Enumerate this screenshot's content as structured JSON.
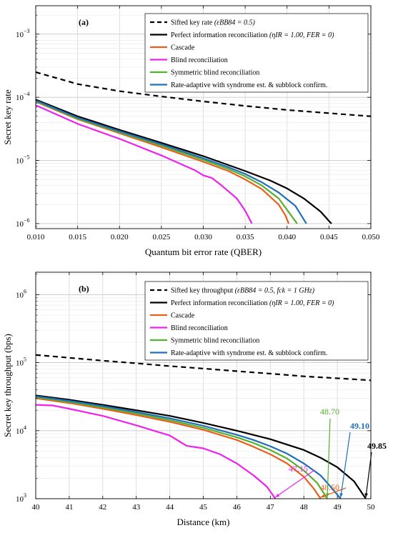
{
  "chart_data": [
    {
      "type": "line",
      "panel_label": "(a)",
      "xlabel": "Quantum bit error rate (QBER)",
      "ylabel": "Secret key rate",
      "xlim": [
        0.01,
        0.05
      ],
      "ylim_log10": [
        -6.08,
        -2.55
      ],
      "y_scale": "log",
      "grid": true,
      "legend_position": "top-right",
      "x_ticks": [
        "0.010",
        "0.015",
        "0.020",
        "0.025",
        "0.030",
        "0.035",
        "0.040",
        "0.045",
        "0.050"
      ],
      "x_tick_values": [
        0.01,
        0.015,
        0.02,
        0.025,
        0.03,
        0.035,
        0.04,
        0.045,
        0.05
      ],
      "y_tick_exponents": [
        -6,
        -5,
        -4,
        -3
      ],
      "series": [
        {
          "name": "Sifted key rate",
          "name_math": "(εBB84 = 0.5)",
          "color": "#000000",
          "dash": true,
          "x": [
            0.01,
            0.015,
            0.02,
            0.025,
            0.03,
            0.035,
            0.04,
            0.045,
            0.05
          ],
          "y": [
            0.00025,
            0.000162,
            0.000125,
            0.000103,
            8.6e-05,
            7.3e-05,
            6.3e-05,
            5.6e-05,
            5e-05
          ]
        },
        {
          "name": "Perfect information reconciliation",
          "name_math": "(ηIR = 1.00, FER = 0)",
          "color": "#000000",
          "x": [
            0.01,
            0.015,
            0.02,
            0.025,
            0.03,
            0.035,
            0.038,
            0.04,
            0.042,
            0.044,
            0.045,
            0.0453
          ],
          "y": [
            9.2e-05,
            5e-05,
            3.05e-05,
            1.9e-05,
            1.17e-05,
            6.8e-06,
            4.8e-06,
            3.6e-06,
            2.5e-06,
            1.55e-06,
            1.1e-06,
            1e-06
          ]
        },
        {
          "name": "Cascade",
          "color": "#e8601c",
          "x": [
            0.01,
            0.015,
            0.02,
            0.025,
            0.03,
            0.033,
            0.035,
            0.037,
            0.039,
            0.0398,
            0.0402
          ],
          "y": [
            8.5e-05,
            4.5e-05,
            2.7e-05,
            1.62e-05,
            9.5e-06,
            6.8e-06,
            5e-06,
            3.5e-06,
            2e-06,
            1.35e-06,
            1e-06
          ]
        },
        {
          "name": "Blind reconciliation",
          "color": "#ee22ee",
          "x": [
            0.01,
            0.015,
            0.019,
            0.02,
            0.025,
            0.028,
            0.029,
            0.03,
            0.031,
            0.032,
            0.034,
            0.035,
            0.0358
          ],
          "y": [
            7.5e-05,
            3.8e-05,
            2.45e-05,
            2.2e-05,
            1.2e-05,
            8e-06,
            7e-06,
            5.8e-06,
            5.3e-06,
            4.2e-06,
            2.5e-06,
            1.6e-06,
            1e-06
          ]
        },
        {
          "name": "Symmetric blind reconciliation",
          "color": "#55b02e",
          "x": [
            0.01,
            0.015,
            0.02,
            0.025,
            0.03,
            0.033,
            0.035,
            0.037,
            0.039,
            0.04,
            0.0412
          ],
          "y": [
            8.7e-05,
            4.6e-05,
            2.8e-05,
            1.72e-05,
            1.02e-05,
            7.3e-06,
            5.6e-06,
            4e-06,
            2.5e-06,
            1.65e-06,
            1e-06
          ]
        },
        {
          "name": "Rate-adaptive with syndrome est. & subblock confirm.",
          "color": "#1f6fba",
          "x": [
            0.01,
            0.015,
            0.02,
            0.025,
            0.03,
            0.033,
            0.035,
            0.037,
            0.039,
            0.041,
            0.0423
          ],
          "y": [
            8.9e-05,
            4.75e-05,
            2.9e-05,
            1.8e-05,
            1.08e-05,
            7.8e-06,
            6.1e-06,
            4.5e-06,
            3.1e-06,
            1.9e-06,
            1e-06
          ]
        }
      ]
    },
    {
      "type": "line",
      "panel_label": "(b)",
      "xlabel": "Distance (km)",
      "ylabel": "Secret key throughput (bps)",
      "xlim": [
        40,
        50
      ],
      "ylim_log10": [
        3.0,
        6.33
      ],
      "y_scale": "log",
      "grid": true,
      "legend_position": "top-right",
      "x_ticks": [
        "40",
        "41",
        "42",
        "43",
        "44",
        "45",
        "46",
        "47",
        "48",
        "49",
        "50"
      ],
      "x_tick_values": [
        40,
        41,
        42,
        43,
        44,
        45,
        46,
        47,
        48,
        49,
        50
      ],
      "y_tick_exponents": [
        3,
        4,
        5,
        6
      ],
      "series": [
        {
          "name": "Sifted key throughput",
          "name_math": "(εBB84 = 0.5, fck = 1 GHz)",
          "color": "#000000",
          "dash": true,
          "x": [
            40,
            41,
            42,
            43,
            44,
            45,
            46,
            47,
            48,
            49,
            50
          ],
          "y": [
            130000.0,
            118000.0,
            107000.0,
            98000.0,
            89000.0,
            82000.0,
            75000.0,
            69000.0,
            63000.0,
            59000.0,
            55000.0
          ]
        },
        {
          "name": "Perfect information reconciliation",
          "name_math": "(ηIR = 1.00, FER = 0)",
          "color": "#000000",
          "x": [
            40,
            41,
            42,
            43,
            44,
            45,
            46,
            47,
            48,
            48.5,
            49,
            49.5,
            49.85
          ],
          "y": [
            33000.0,
            28500.0,
            24000.0,
            20000.0,
            16500.0,
            13000.0,
            10000.0,
            7500.0,
            5200.0,
            4000.0,
            2900.0,
            1800.0,
            1000.0
          ]
        },
        {
          "name": "Cascade",
          "color": "#e8601c",
          "x": [
            40,
            41,
            42,
            43,
            44,
            45,
            46,
            46.5,
            47,
            47.5,
            48,
            48.3,
            48.5
          ],
          "y": [
            30000.0,
            25500.0,
            21000.0,
            17000.0,
            13500.0,
            10300.0,
            7300.0,
            5800.0,
            4500.0,
            3300.0,
            2100.0,
            1400.0,
            1000.0
          ]
        },
        {
          "name": "Blind reconciliation",
          "color": "#ee22ee",
          "x": [
            40,
            40.5,
            41,
            42,
            43,
            44,
            44.5,
            45,
            45.5,
            46,
            46.5,
            46.9,
            47.15
          ],
          "y": [
            24000.0,
            23500.0,
            21000.0,
            16500.0,
            12000.0,
            8500.0,
            6000.0,
            5500.0,
            4500.0,
            3300.0,
            2200.0,
            1500.0,
            1000.0
          ]
        },
        {
          "name": "Symmetric blind reconciliation",
          "color": "#55b02e",
          "x": [
            40,
            41,
            42,
            43,
            44,
            45,
            46,
            46.5,
            47,
            47.5,
            48,
            48.4,
            48.7
          ],
          "y": [
            31000.0,
            26500.0,
            22000.0,
            18000.0,
            14300.0,
            11000.0,
            8000.0,
            6600.0,
            5200.0,
            3900.0,
            2600.0,
            1700.0,
            1000.0
          ]
        },
        {
          "name": "Rate-adaptive with syndrome est. & subblock confirm.",
          "color": "#1f6fba",
          "x": [
            40,
            41,
            42,
            43,
            44,
            45,
            46,
            46.5,
            47,
            47.5,
            48,
            48.5,
            48.8,
            49.1
          ],
          "y": [
            32000.0,
            27500.0,
            23000.0,
            18800.0,
            15200.0,
            11800.0,
            8700.0,
            7300.0,
            5900.0,
            4600.0,
            3300.0,
            2200.0,
            1500.0,
            1000.0
          ]
        }
      ],
      "annotations": [
        {
          "text": "47.15",
          "color": "#ee22ee",
          "x": 47.15
        },
        {
          "text": "48.50",
          "color": "#e8601c",
          "x": 48.5
        },
        {
          "text": "48.70",
          "color": "#55b02e",
          "x": 48.7
        },
        {
          "text": "49.10",
          "color": "#1f6fba",
          "x": 49.1
        },
        {
          "text": "49.85",
          "color": "#000000",
          "x": 49.85
        }
      ]
    }
  ]
}
